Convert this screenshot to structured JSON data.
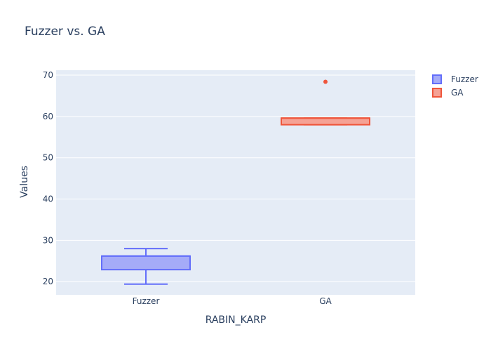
{
  "chart_data": {
    "type": "box",
    "title": "Fuzzer vs. GA",
    "xlabel": "RABIN_KARP",
    "ylabel": "Values",
    "categories": [
      "Fuzzer",
      "GA"
    ],
    "ylim": [
      16.8,
      71.2
    ],
    "yticks": [
      20,
      30,
      40,
      50,
      60,
      70
    ],
    "grid": true,
    "legend_position": "top-right",
    "series": [
      {
        "name": "Fuzzer",
        "category": "Fuzzer",
        "color": "#636efa",
        "fill": "#a5abf8",
        "whisker_low": 19.4,
        "q1": 22.9,
        "median": 26.2,
        "q3": 26.2,
        "whisker_high": 28.0,
        "outliers": []
      },
      {
        "name": "GA",
        "category": "GA",
        "color": "#ef553b",
        "fill": "#f5a295",
        "whisker_low": 58.0,
        "q1": 58.0,
        "median": 59.6,
        "q3": 59.6,
        "whisker_high": 59.6,
        "outliers": [
          68.4
        ]
      }
    ],
    "colors": {
      "plot_background": "#e5ecf6",
      "grid": "#ffffff",
      "text": "#2a3f5f"
    }
  }
}
